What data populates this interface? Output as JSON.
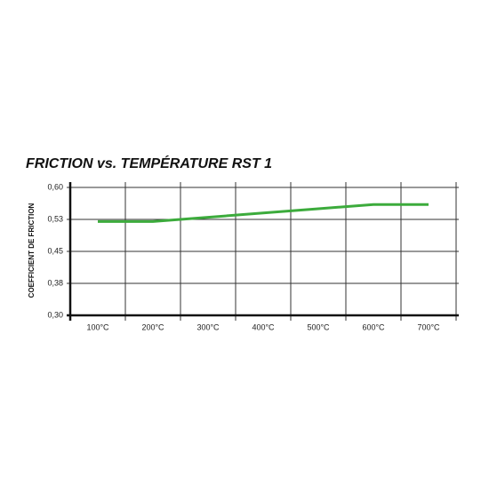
{
  "chart_data": {
    "type": "line",
    "title": "FRICTION vs. TEMPÉRATURE RST 1",
    "y_label": "COEFFICIENT DE FRICTION",
    "categories": [
      "100°C",
      "200°C",
      "300°C",
      "400°C",
      "500°C",
      "600°C",
      "700°C"
    ],
    "series": [
      {
        "color": "#3cab3c",
        "values": [
          0.52,
          0.52,
          0.53,
          0.54,
          0.55,
          0.56,
          0.56
        ]
      }
    ],
    "ylim": [
      0.3,
      0.6
    ],
    "yticks": [
      {
        "value": 0.3,
        "label": "0,30"
      },
      {
        "value": 0.375,
        "label": "0,38"
      },
      {
        "value": 0.45,
        "label": "0,45"
      },
      {
        "value": 0.525,
        "label": "0,53"
      },
      {
        "value": 0.6,
        "label": "0,60"
      }
    ],
    "grid": true
  }
}
